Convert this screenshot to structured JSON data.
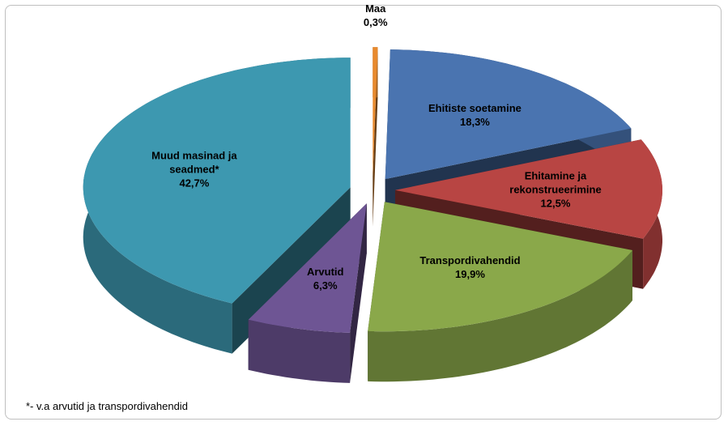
{
  "chart_data": {
    "type": "pie3d",
    "categories": [
      "Maa",
      "Ehitiste soetamine",
      "Ehitamine ja rekonstrueerimine",
      "Transpordivahendid",
      "Arvutid",
      "Muud masinad ja seadmed*"
    ],
    "values": [
      0.3,
      18.3,
      12.5,
      19.9,
      6.3,
      42.7
    ],
    "value_labels": [
      "0,3%",
      "18,3%",
      "12,5%",
      "19,9%",
      "6,3%",
      "42,7%"
    ],
    "colors": [
      "#e88a2e",
      "#4a74b0",
      "#b84543",
      "#8aa84a",
      "#6e5594",
      "#3d98b0"
    ],
    "footnote": "*- v.a arvutid ja transpordivahendid"
  }
}
